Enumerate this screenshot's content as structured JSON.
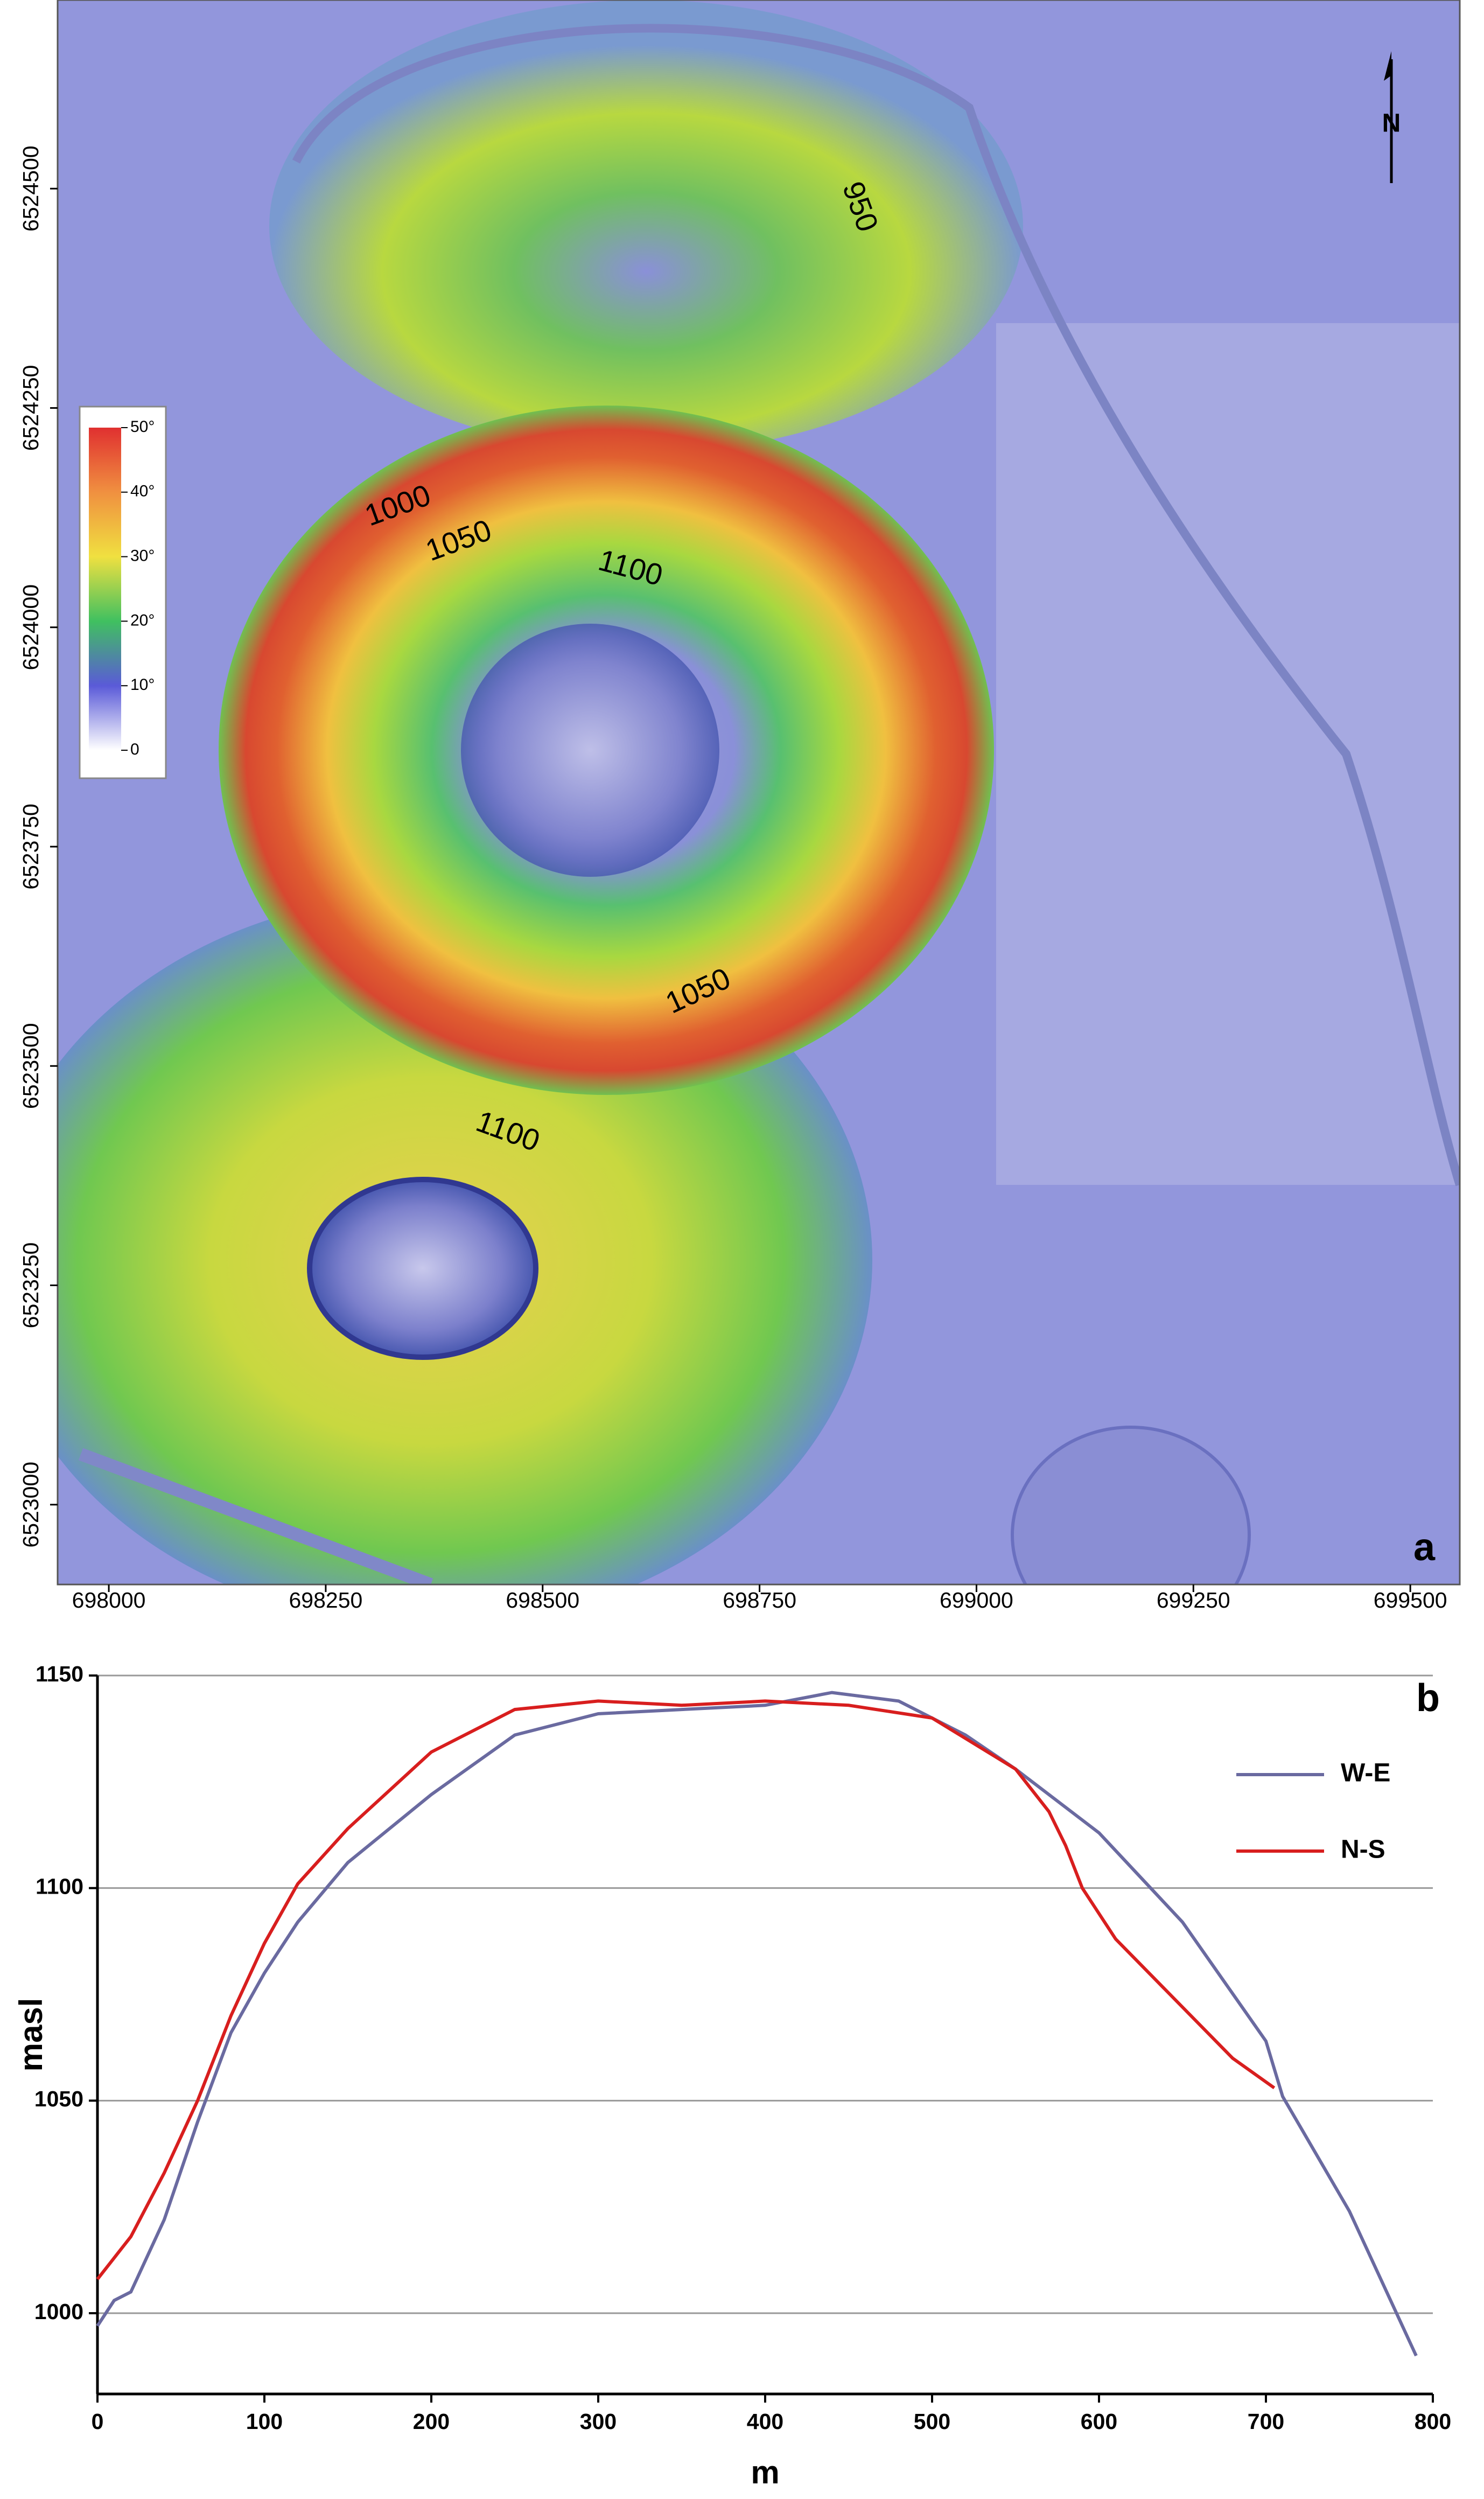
{
  "chart_data": [
    {
      "type": "map",
      "label": "a",
      "north": "N",
      "xlim": [
        697941,
        699557
      ],
      "xticks": [
        698000,
        698250,
        698500,
        698750,
        699000,
        699250,
        699500
      ],
      "ylim": [
        6522909,
        6524715
      ],
      "yticks": [
        6523000,
        6523250,
        6523500,
        6523750,
        6524000,
        6524250,
        6524500
      ],
      "colorbar": {
        "lim": [
          0,
          50
        ],
        "ticks": [
          0,
          {
            "value": 10,
            "label": "10°"
          },
          {
            "value": 20,
            "label": "20°"
          },
          {
            "value": 30,
            "label": "30°"
          },
          {
            "value": 40,
            "label": "40°"
          },
          {
            "value": 50,
            "label": "50°"
          }
        ]
      },
      "contour_labels": [
        "950",
        "1000",
        "1050",
        "1100",
        "1050",
        "1100"
      ]
    },
    {
      "type": "line",
      "label": "b",
      "xlabel": "m",
      "ylabel": "masl",
      "xlim": [
        0,
        800
      ],
      "xticks": [
        0,
        100,
        200,
        300,
        400,
        500,
        600,
        700,
        800
      ],
      "ylim": [
        981,
        1150
      ],
      "yticks": [
        1000,
        1050,
        1100,
        1150
      ],
      "grid": true,
      "series": [
        {
          "name": "W-E",
          "color": "#6a6aa0",
          "x": [
            0,
            10,
            20,
            40,
            60,
            80,
            100,
            120,
            150,
            200,
            250,
            300,
            350,
            400,
            440,
            480,
            520,
            550,
            600,
            650,
            700,
            710,
            750,
            790
          ],
          "values": [
            997,
            1003,
            1005,
            1022,
            1045,
            1066,
            1080,
            1092,
            1106,
            1122,
            1136,
            1141,
            1142,
            1143,
            1146,
            1144,
            1136,
            1128,
            1113,
            1092,
            1064,
            1051,
            1024,
            990
          ]
        },
        {
          "name": "N-S",
          "color": "#d81e1e",
          "x": [
            0,
            10,
            20,
            40,
            60,
            80,
            100,
            120,
            150,
            200,
            250,
            300,
            350,
            400,
            450,
            500,
            550,
            570,
            580,
            590,
            610,
            650,
            680,
            705
          ],
          "values": [
            1008,
            1013,
            1018,
            1033,
            1050,
            1070,
            1087,
            1101,
            1114,
            1132,
            1142,
            1144,
            1143,
            1144,
            1143,
            1140,
            1128,
            1118,
            1110,
            1100,
            1088,
            1072,
            1060,
            1053
          ]
        }
      ]
    }
  ]
}
